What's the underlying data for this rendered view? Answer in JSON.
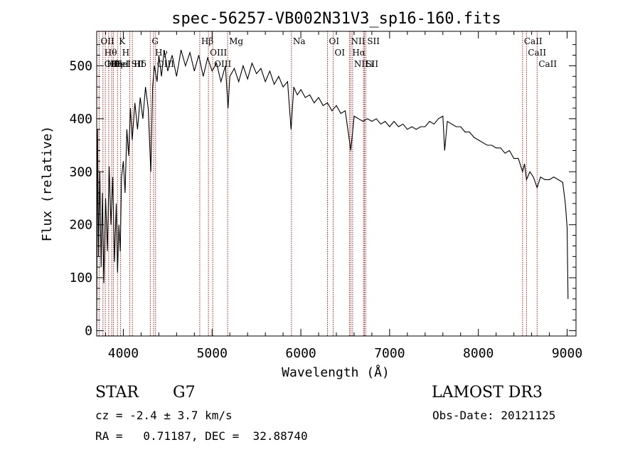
{
  "chart_data": {
    "type": "line",
    "title": "spec-56257-VB002N31V3_sp16-160.fits",
    "xlabel": "Wavelength (Å)",
    "ylabel": "Flux (relative)",
    "xlim": [
      3700,
      9100
    ],
    "ylim": [
      -10,
      565
    ],
    "x_ticks": [
      4000,
      5000,
      6000,
      7000,
      8000,
      9000
    ],
    "y_ticks": [
      0,
      100,
      200,
      300,
      400,
      500
    ],
    "grid": false,
    "series": [
      {
        "color": "#000000",
        "points": [
          [
            3700,
            20
          ],
          [
            3710,
            380
          ],
          [
            3720,
            140
          ],
          [
            3735,
            300
          ],
          [
            3750,
            120
          ],
          [
            3765,
            260
          ],
          [
            3780,
            90
          ],
          [
            3800,
            250
          ],
          [
            3820,
            150
          ],
          [
            3840,
            310
          ],
          [
            3860,
            200
          ],
          [
            3880,
            290
          ],
          [
            3900,
            130
          ],
          [
            3920,
            240
          ],
          [
            3935,
            110
          ],
          [
            3950,
            200
          ],
          [
            3965,
            150
          ],
          [
            3980,
            290
          ],
          [
            4000,
            320
          ],
          [
            4020,
            260
          ],
          [
            4040,
            380
          ],
          [
            4060,
            330
          ],
          [
            4080,
            420
          ],
          [
            4100,
            360
          ],
          [
            4130,
            430
          ],
          [
            4160,
            380
          ],
          [
            4190,
            440
          ],
          [
            4220,
            400
          ],
          [
            4250,
            460
          ],
          [
            4280,
            420
          ],
          [
            4310,
            300
          ],
          [
            4330,
            460
          ],
          [
            4350,
            500
          ],
          [
            4380,
            470
          ],
          [
            4400,
            520
          ],
          [
            4430,
            480
          ],
          [
            4460,
            530
          ],
          [
            4500,
            490
          ],
          [
            4550,
            520
          ],
          [
            4600,
            480
          ],
          [
            4650,
            530
          ],
          [
            4700,
            500
          ],
          [
            4750,
            525
          ],
          [
            4800,
            490
          ],
          [
            4850,
            520
          ],
          [
            4900,
            480
          ],
          [
            4950,
            515
          ],
          [
            5000,
            490
          ],
          [
            5050,
            505
          ],
          [
            5100,
            470
          ],
          [
            5150,
            500
          ],
          [
            5180,
            420
          ],
          [
            5200,
            480
          ],
          [
            5250,
            495
          ],
          [
            5300,
            470
          ],
          [
            5350,
            500
          ],
          [
            5400,
            475
          ],
          [
            5450,
            505
          ],
          [
            5500,
            485
          ],
          [
            5550,
            495
          ],
          [
            5600,
            470
          ],
          [
            5650,
            490
          ],
          [
            5700,
            465
          ],
          [
            5750,
            480
          ],
          [
            5800,
            460
          ],
          [
            5850,
            470
          ],
          [
            5890,
            380
          ],
          [
            5920,
            460
          ],
          [
            5960,
            445
          ],
          [
            6000,
            455
          ],
          [
            6050,
            440
          ],
          [
            6100,
            445
          ],
          [
            6150,
            430
          ],
          [
            6200,
            440
          ],
          [
            6250,
            425
          ],
          [
            6300,
            430
          ],
          [
            6350,
            415
          ],
          [
            6400,
            425
          ],
          [
            6450,
            410
          ],
          [
            6500,
            415
          ],
          [
            6563,
            340
          ],
          [
            6600,
            405
          ],
          [
            6650,
            400
          ],
          [
            6700,
            395
          ],
          [
            6750,
            400
          ],
          [
            6800,
            395
          ],
          [
            6850,
            400
          ],
          [
            6900,
            390
          ],
          [
            6950,
            395
          ],
          [
            7000,
            385
          ],
          [
            7050,
            395
          ],
          [
            7100,
            385
          ],
          [
            7150,
            390
          ],
          [
            7200,
            380
          ],
          [
            7250,
            385
          ],
          [
            7300,
            380
          ],
          [
            7350,
            385
          ],
          [
            7400,
            385
          ],
          [
            7450,
            395
          ],
          [
            7500,
            390
          ],
          [
            7550,
            400
          ],
          [
            7600,
            405
          ],
          [
            7620,
            340
          ],
          [
            7650,
            395
          ],
          [
            7700,
            390
          ],
          [
            7750,
            385
          ],
          [
            7800,
            385
          ],
          [
            7850,
            375
          ],
          [
            7900,
            375
          ],
          [
            7950,
            365
          ],
          [
            8000,
            360
          ],
          [
            8050,
            355
          ],
          [
            8100,
            350
          ],
          [
            8150,
            350
          ],
          [
            8200,
            345
          ],
          [
            8250,
            345
          ],
          [
            8300,
            335
          ],
          [
            8350,
            340
          ],
          [
            8400,
            325
          ],
          [
            8450,
            325
          ],
          [
            8498,
            300
          ],
          [
            8520,
            315
          ],
          [
            8542,
            285
          ],
          [
            8580,
            300
          ],
          [
            8620,
            290
          ],
          [
            8662,
            270
          ],
          [
            8700,
            290
          ],
          [
            8750,
            285
          ],
          [
            8800,
            285
          ],
          [
            8850,
            290
          ],
          [
            8900,
            285
          ],
          [
            8950,
            280
          ],
          [
            8980,
            240
          ],
          [
            9000,
            195
          ],
          [
            9010,
            60
          ]
        ]
      }
    ],
    "lines": [
      {
        "x": 3727,
        "labels": [
          "OII"
        ]
      },
      {
        "x": 3770,
        "labels": [
          "Hθ",
          "OII"
        ]
      },
      {
        "x": 3797,
        "labels": [
          "Hθ"
        ]
      },
      {
        "x": 3835,
        "labels": [
          "Hη"
        ]
      },
      {
        "x": 3869,
        "labels": [
          "HeI"
        ]
      },
      {
        "x": 3889,
        "labels": [
          "HeI"
        ]
      },
      {
        "x": 3934,
        "labels": [
          "K"
        ]
      },
      {
        "x": 3969,
        "labels": [
          "H"
        ]
      },
      {
        "x": 4072,
        "labels": [
          "SII"
        ]
      },
      {
        "x": 4102,
        "labels": [
          "Hδ"
        ]
      },
      {
        "x": 4304,
        "labels": [
          "G"
        ]
      },
      {
        "x": 4341,
        "labels": [
          "Hγ"
        ]
      },
      {
        "x": 4363,
        "labels": [
          "OIII"
        ]
      },
      {
        "x": 4861,
        "labels": [
          "Hβ"
        ]
      },
      {
        "x": 4959,
        "labels": [
          "OIII"
        ]
      },
      {
        "x": 5007,
        "labels": [
          "OIII"
        ]
      },
      {
        "x": 5175,
        "labels": [
          "Mg"
        ]
      },
      {
        "x": 5894,
        "labels": [
          "Na"
        ]
      },
      {
        "x": 6300,
        "labels": [
          "OI"
        ]
      },
      {
        "x": 6364,
        "labels": [
          "OI"
        ]
      },
      {
        "x": 6548,
        "labels": [
          "NII"
        ]
      },
      {
        "x": 6563,
        "labels": [
          "Hα"
        ]
      },
      {
        "x": 6583,
        "labels": [
          "NII"
        ]
      },
      {
        "x": 6707,
        "labels": [
          "Li"
        ]
      },
      {
        "x": 6716,
        "labels": [
          "SII"
        ]
      },
      {
        "x": 6731,
        "labels": [
          "SII"
        ]
      },
      {
        "x": 8498,
        "labels": [
          "CaII"
        ]
      },
      {
        "x": 8542,
        "labels": [
          "CaII"
        ]
      },
      {
        "x": 8662,
        "labels": [
          "CaII"
        ]
      }
    ],
    "line_color": "#b22222"
  },
  "info": {
    "object_class": "STAR",
    "subclass": "G7",
    "survey": "LAMOST DR3",
    "redshift_text": "cz = -2.4 ± 3.7 km/s",
    "obs_date": "Obs-Date: 20121125",
    "coords": "RA =   0.71187, DEC =  32.88740"
  }
}
